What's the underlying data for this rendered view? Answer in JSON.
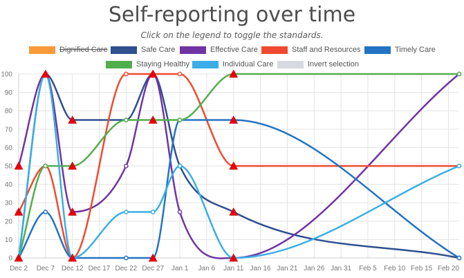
{
  "header": {
    "title": "Self-reporting over time",
    "subtitle": "Click on the legend to toggle the standards."
  },
  "legend": {
    "items": [
      {
        "label": "Dignified Care",
        "color": "#fb9a3a",
        "hidden": true
      },
      {
        "label": "Safe Care",
        "color": "#2f4f8f",
        "hidden": false
      },
      {
        "label": "Effective Care",
        "color": "#7034a3",
        "hidden": false
      },
      {
        "label": "Staff and Resources",
        "color": "#ef4a30",
        "hidden": false
      },
      {
        "label": "Timely Care",
        "color": "#2273c3",
        "hidden": false
      },
      {
        "label": "Staying Healthy",
        "color": "#52ae4d",
        "hidden": false
      },
      {
        "label": "Individual Care",
        "color": "#3aaee6",
        "hidden": false
      },
      {
        "label": "Invert selection",
        "color": "#d7d9de",
        "hidden": false
      }
    ]
  },
  "chart_data": {
    "type": "line",
    "title": "Self-reporting over time",
    "ylim": [
      0,
      100
    ],
    "yticks": [
      0,
      10,
      20,
      30,
      40,
      50,
      60,
      70,
      80,
      90,
      100
    ],
    "xlim": [
      "2021-12-02",
      "2022-02-22"
    ],
    "xticks": [
      "Dec 2",
      "Dec 7",
      "Dec 12",
      "Dec 17",
      "Dec 22",
      "Dec 27",
      "Jan 1",
      "Jan 6",
      "Jan 11",
      "Jan 16",
      "Jan 21",
      "Jan 26",
      "Jan 31",
      "Feb 5",
      "Feb 10",
      "Feb 15",
      "Feb 20"
    ],
    "grid": true,
    "series": [
      {
        "name": "Safe Care",
        "color": "#2f4f8f",
        "x": [
          "2021-12-02",
          "2021-12-07",
          "2021-12-12",
          "2021-12-22",
          "2021-12-27",
          "2022-01-01",
          "2022-01-11",
          "2022-02-22"
        ],
        "y": [
          0,
          100,
          75,
          75,
          100,
          50,
          25,
          0
        ]
      },
      {
        "name": "Effective Care",
        "color": "#7034a3",
        "x": [
          "2021-12-02",
          "2021-12-07",
          "2021-12-12",
          "2021-12-22",
          "2021-12-27",
          "2022-01-01",
          "2022-01-11",
          "2022-02-22"
        ],
        "y": [
          50,
          100,
          25,
          50,
          100,
          25,
          0,
          100
        ]
      },
      {
        "name": "Staff and Resources",
        "color": "#ef4a30",
        "x": [
          "2021-12-02",
          "2021-12-07",
          "2021-12-12",
          "2021-12-22",
          "2021-12-27",
          "2022-01-01",
          "2022-01-11",
          "2022-02-22"
        ],
        "y": [
          25,
          50,
          0,
          100,
          100,
          100,
          50,
          50
        ]
      },
      {
        "name": "Timely Care",
        "color": "#2273c3",
        "x": [
          "2021-12-02",
          "2021-12-07",
          "2021-12-12",
          "2021-12-22",
          "2021-12-27",
          "2022-01-01",
          "2022-01-11",
          "2022-02-22"
        ],
        "y": [
          0,
          25,
          0,
          0,
          0,
          75,
          75,
          0
        ]
      },
      {
        "name": "Staying Healthy",
        "color": "#52ae4d",
        "x": [
          "2021-12-02",
          "2021-12-07",
          "2021-12-12",
          "2021-12-22",
          "2021-12-27",
          "2022-01-01",
          "2022-01-11",
          "2022-02-22"
        ],
        "y": [
          0,
          50,
          50,
          75,
          75,
          75,
          100,
          100
        ]
      },
      {
        "name": "Individual Care",
        "color": "#3aaee6",
        "x": [
          "2021-12-02",
          "2021-12-07",
          "2021-12-12",
          "2021-12-22",
          "2021-12-27",
          "2022-01-01",
          "2022-01-11",
          "2022-02-22"
        ],
        "y": [
          0,
          100,
          0,
          25,
          25,
          50,
          0,
          50
        ]
      }
    ],
    "flagged_points": [
      {
        "x": "2021-12-02",
        "y": 50
      },
      {
        "x": "2021-12-02",
        "y": 25
      },
      {
        "x": "2021-12-02",
        "y": 0
      },
      {
        "x": "2021-12-07",
        "y": 100
      },
      {
        "x": "2021-12-12",
        "y": 75
      },
      {
        "x": "2021-12-12",
        "y": 50
      },
      {
        "x": "2021-12-12",
        "y": 25
      },
      {
        "x": "2021-12-12",
        "y": 0
      },
      {
        "x": "2021-12-27",
        "y": 100
      },
      {
        "x": "2021-12-27",
        "y": 75
      },
      {
        "x": "2021-12-27",
        "y": 0
      },
      {
        "x": "2022-01-11",
        "y": 100
      },
      {
        "x": "2022-01-11",
        "y": 75
      },
      {
        "x": "2022-01-11",
        "y": 50
      },
      {
        "x": "2022-01-11",
        "y": 25
      },
      {
        "x": "2022-01-11",
        "y": 0
      }
    ]
  }
}
